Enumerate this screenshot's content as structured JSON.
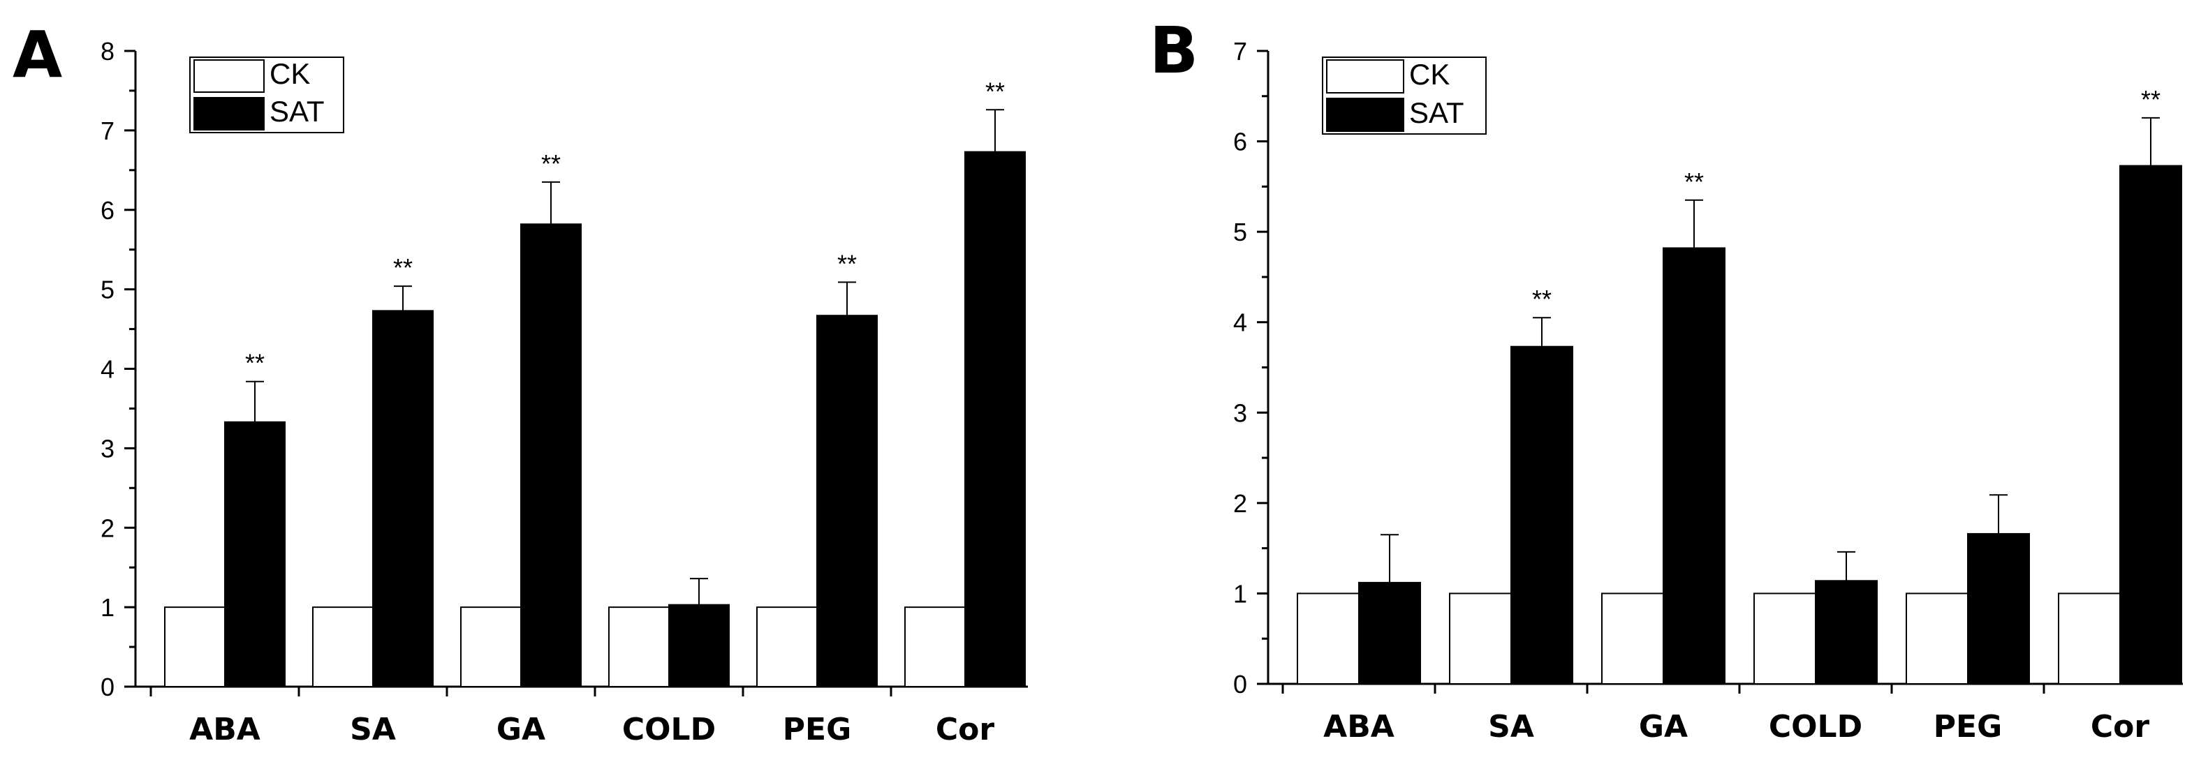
{
  "chart_data": [
    {
      "panel": "A",
      "type": "bar",
      "categories": [
        "ABA",
        "SA",
        "GA",
        "COLD",
        "PEG",
        "Cor"
      ],
      "ylim": [
        0,
        8
      ],
      "yticks": [
        "0",
        "1",
        "2",
        "3",
        "4",
        "5",
        "6",
        "7",
        "8"
      ],
      "legend": {
        "position": "top-left",
        "entries": [
          "CK",
          "SAT"
        ]
      },
      "series": [
        {
          "name": "CK",
          "values": [
            1,
            1,
            1,
            1,
            1,
            1
          ],
          "errors": [
            0,
            0,
            0,
            0,
            0,
            0
          ],
          "color": "#ffffff"
        },
        {
          "name": "SAT",
          "values": [
            3.33,
            4.73,
            5.82,
            1.03,
            4.67,
            6.73
          ],
          "errors": [
            0.51,
            0.31,
            0.53,
            0.33,
            0.42,
            0.53
          ],
          "color": "#000000"
        }
      ],
      "significance": [
        "**",
        "**",
        "**",
        "",
        "**",
        "**"
      ]
    },
    {
      "panel": "B",
      "type": "bar",
      "categories": [
        "ABA",
        "SA",
        "GA",
        "COLD",
        "PEG",
        "Cor"
      ],
      "ylim": [
        0,
        7
      ],
      "yticks": [
        "0",
        "1",
        "2",
        "3",
        "4",
        "5",
        "6",
        "7"
      ],
      "legend": {
        "position": "top-left",
        "entries": [
          "CK",
          "SAT"
        ]
      },
      "series": [
        {
          "name": "CK",
          "values": [
            1,
            1,
            1,
            1,
            1,
            1
          ],
          "errors": [
            0,
            0,
            0,
            0,
            0,
            0
          ],
          "color": "#ffffff"
        },
        {
          "name": "SAT",
          "values": [
            1.12,
            3.73,
            4.82,
            1.14,
            1.66,
            5.73
          ],
          "errors": [
            0.53,
            0.32,
            0.53,
            0.32,
            0.43,
            0.53
          ],
          "color": "#000000"
        }
      ],
      "significance": [
        "",
        "**",
        "**",
        "",
        "",
        "**"
      ]
    }
  ]
}
